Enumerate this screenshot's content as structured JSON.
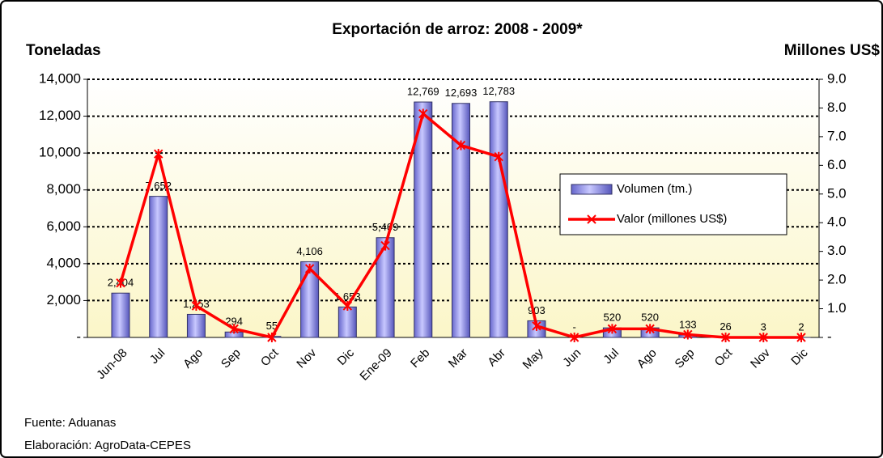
{
  "chart_data": {
    "type": "bar-line",
    "title": "Exportación de arroz: 2008 - 2009*",
    "y_axis_label": "Toneladas",
    "y2_axis_label": "Millones US$",
    "categories": [
      "Jun-08",
      "Jul",
      "Ago",
      "Sep",
      "Oct",
      "Nov",
      "Dic",
      "Ene-09",
      "Feb",
      "Mar",
      "Abr",
      "May",
      "Jun",
      "Jul",
      "Ago",
      "Sep",
      "Oct",
      "Nov",
      "Dic"
    ],
    "series": [
      {
        "name": "Volumen (tm.)",
        "color": "#9999ff",
        "type": "bar",
        "values": [
          2404,
          7652,
          1253,
          294,
          55,
          4106,
          1653,
          5409,
          12769,
          12693,
          12783,
          903,
          0,
          520,
          520,
          133,
          26,
          3,
          2
        ],
        "value_labels": [
          "2,404",
          "7,652",
          "1,253",
          "294",
          "55",
          "4,106",
          "1,653",
          "5,409",
          "12,769",
          "12,693",
          "12,783",
          "903",
          "-",
          "520",
          "520",
          "133",
          "26",
          "3",
          "2"
        ]
      },
      {
        "name": "Valor (millones US$)",
        "color": "#ff0000",
        "type": "line",
        "axis": "y2",
        "values": [
          1.9,
          6.4,
          1.1,
          0.3,
          0.0,
          2.4,
          1.1,
          3.2,
          7.8,
          6.7,
          6.3,
          0.4,
          0.0,
          0.3,
          0.3,
          0.1,
          0.0,
          0.0,
          0.0
        ]
      }
    ],
    "ylim": [
      0,
      14000
    ],
    "yticks": [
      {
        "value": 0,
        "label": "-"
      },
      {
        "value": 2000,
        "label": "2,000"
      },
      {
        "value": 4000,
        "label": "4,000"
      },
      {
        "value": 6000,
        "label": "6,000"
      },
      {
        "value": 8000,
        "label": "8,000"
      },
      {
        "value": 10000,
        "label": "10,000"
      },
      {
        "value": 12000,
        "label": "12,000"
      },
      {
        "value": 14000,
        "label": "14,000"
      }
    ],
    "y2lim": [
      0,
      9
    ],
    "y2ticks": [
      {
        "value": 0,
        "label": "-"
      },
      {
        "value": 1,
        "label": "1.0"
      },
      {
        "value": 2,
        "label": "2.0"
      },
      {
        "value": 3,
        "label": "3.0"
      },
      {
        "value": 4,
        "label": "4.0"
      },
      {
        "value": 5,
        "label": "5.0"
      },
      {
        "value": 6,
        "label": "6.0"
      },
      {
        "value": 7,
        "label": "7.0"
      },
      {
        "value": 8,
        "label": "8.0"
      },
      {
        "value": 9,
        "label": "9.0"
      }
    ],
    "grid": true,
    "legend": "right",
    "source": "Fuente: Aduanas",
    "credit": "Elaboración: AgroData-CEPES"
  }
}
